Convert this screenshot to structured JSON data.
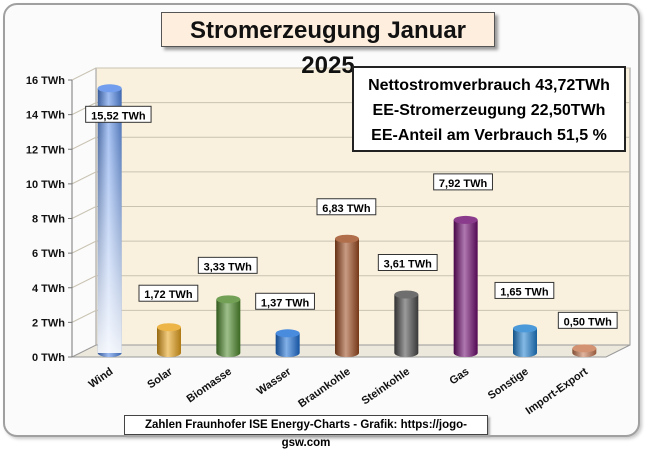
{
  "title": "Stromerzeugung Januar 2025",
  "summary": {
    "line1": "Nettostromverbrauch 43,72TWh",
    "line2": "EE-Stromerzeugung 22,50TWh",
    "line3": "EE-Anteil am Verbrauch 51,5 %"
  },
  "footer": "Zahlen Fraunhofer ISE  Energy-Charts - Grafik: https://jogo-gsw.com",
  "colors": {
    "wind": "#4f86e8",
    "solar": "#e8a21a",
    "biomasse": "#4f8a2c",
    "wasser": "#1c6fd6",
    "braunkohle": "#9c4a1e",
    "steinkohle": "#4a4a4a",
    "gas": "#6e0a6e",
    "sonstige": "#1f7fd0",
    "import": "#c87850",
    "wall": "#f9f1de",
    "grid": "#c9c3b2"
  },
  "chart_data": {
    "type": "bar",
    "categories": [
      "Wind",
      "Solar",
      "Biomasse",
      "Wasser",
      "Braunkohle",
      "Steinkohle",
      "Gas",
      "Sonstige",
      "Import-Export"
    ],
    "values": [
      15.52,
      1.72,
      3.33,
      1.37,
      6.83,
      3.61,
      7.92,
      1.65,
      0.5
    ],
    "data_labels": [
      "15,52 TWh",
      "1,72 TWh",
      "3,33 TWh",
      "1,37 TWh",
      "6,83 TWh",
      "3,61 TWh",
      "7,92 TWh",
      "1,65 TWh",
      "0,50 TWh"
    ],
    "yticks": [
      0,
      2,
      4,
      6,
      8,
      10,
      12,
      14,
      16
    ],
    "ytick_labels": [
      "0 TWh",
      "2 TWh",
      "4 TWh",
      "6 TWh",
      "8 TWh",
      "10 TWh",
      "12 TWh",
      "14 TWh",
      "16 TWh"
    ],
    "ylim": [
      0,
      16
    ],
    "title": "Stromerzeugung Januar 2025",
    "xlabel": "",
    "ylabel": "",
    "grid": true
  }
}
